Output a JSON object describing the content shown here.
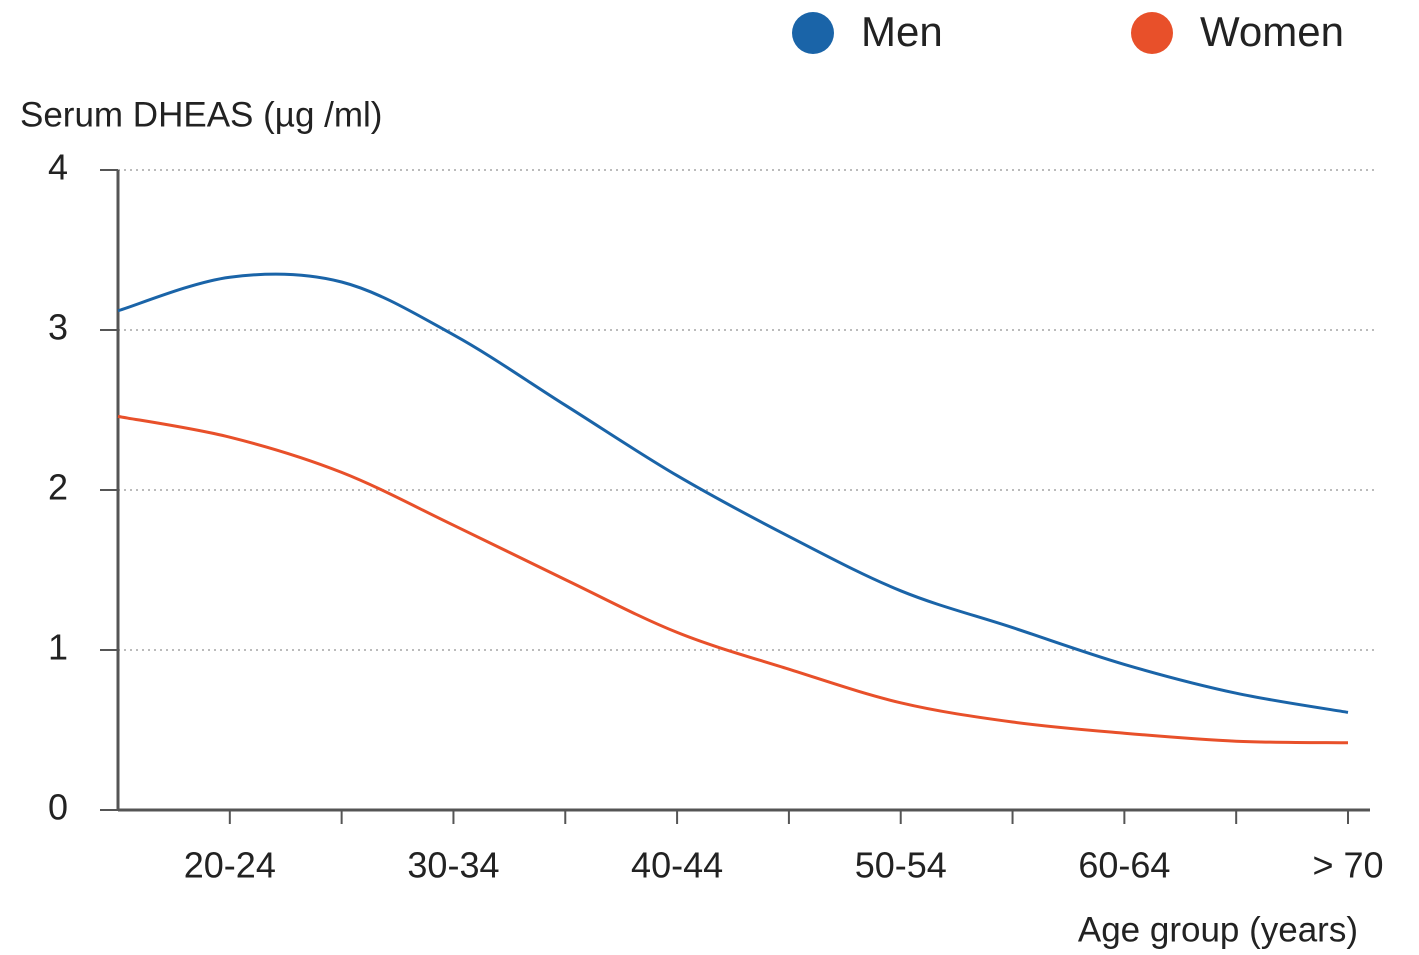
{
  "chart_data": {
    "type": "line",
    "y_label": "Serum DHEAS (µg /ml)",
    "x_label": "Age group (years)",
    "categories": [
      null,
      "20-24",
      null,
      "30-34",
      null,
      "40-44",
      null,
      "50-54",
      null,
      "60-64",
      null,
      "> 70"
    ],
    "series": [
      {
        "name": "Men",
        "color": "#1a64a8",
        "values": [
          3.12,
          3.33,
          3.3,
          2.97,
          2.53,
          2.09,
          1.71,
          1.37,
          1.14,
          0.91,
          0.73,
          0.61
        ]
      },
      {
        "name": "Women",
        "color": "#e8502a",
        "values": [
          2.46,
          2.33,
          2.11,
          1.78,
          1.44,
          1.11,
          0.88,
          0.67,
          0.55,
          0.48,
          0.43,
          0.42
        ]
      }
    ],
    "ylim": [
      0,
      4
    ],
    "yticks": [
      0,
      1,
      2,
      3,
      4
    ],
    "grid": true,
    "legend": "top-right"
  }
}
